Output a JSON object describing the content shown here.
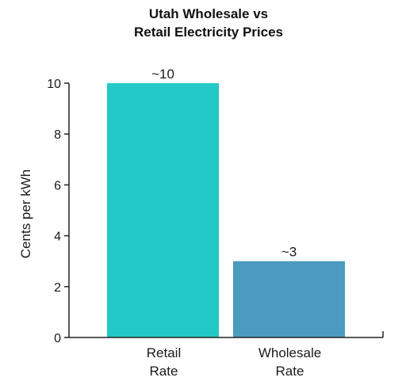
{
  "chart_data": {
    "type": "bar",
    "title": [
      "Utah Wholesale vs",
      "Retail Electricity Prices"
    ],
    "xlabel": "",
    "ylabel": "Cents per kWh",
    "ylim": [
      0,
      10
    ],
    "yticks": [
      "0",
      "2",
      "4",
      "6",
      "8",
      "10"
    ],
    "categories": [
      [
        "Retail",
        "Rate"
      ],
      [
        "Wholesale",
        "Rate"
      ]
    ],
    "values": [
      10,
      3
    ],
    "data_labels": [
      "~10",
      "~3"
    ],
    "colors": [
      "#22c9c6",
      "#4a9bbd"
    ],
    "grid": false,
    "legend": "none"
  }
}
